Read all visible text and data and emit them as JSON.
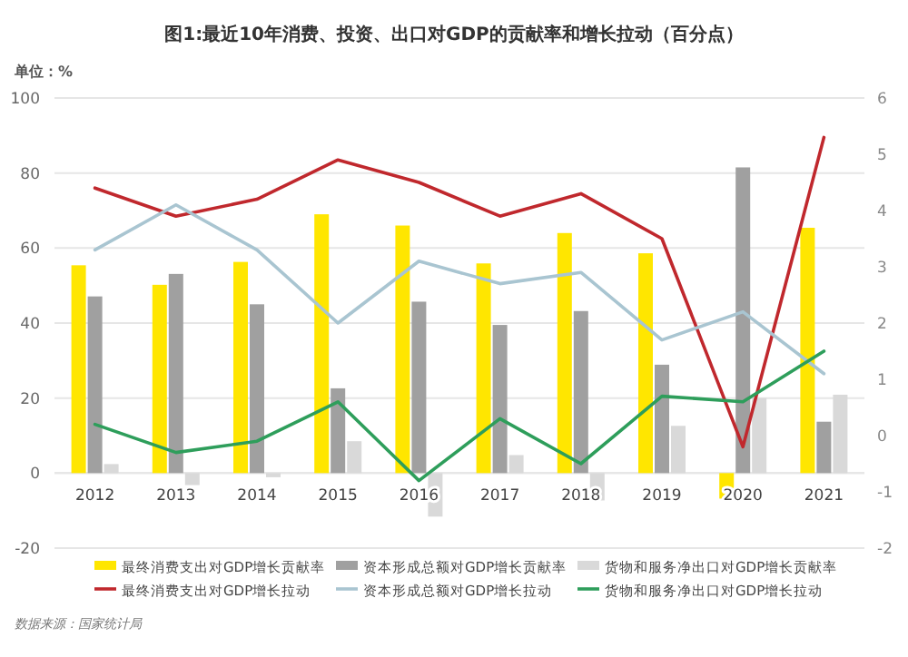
{
  "chart_data": {
    "type": "bar",
    "title": "图1:最近10年消费、投资、出口对GDP的贡献率和增长拉动（百分点）",
    "annotations": [
      "单位：%",
      "数据来源：国家统计局"
    ],
    "categories": [
      "2012",
      "2013",
      "2014",
      "2015",
      "2016",
      "2017",
      "2018",
      "2019",
      "2020",
      "2021"
    ],
    "series": [
      {
        "name": "最终消费支出对GDP增长贡献率",
        "color": "#ffe600",
        "values": [
          55.4,
          50.2,
          56.3,
          69.0,
          66.0,
          55.9,
          64.0,
          58.6,
          -6.8,
          65.4
        ]
      },
      {
        "name": "资本形成总额对GDP增长贡献率",
        "color": "#a0a0a0",
        "values": [
          47.1,
          53.1,
          45.0,
          22.6,
          45.7,
          39.5,
          43.2,
          28.9,
          81.5,
          13.7
        ]
      },
      {
        "name": "货物和服务净出口对GDP增长贡献率",
        "color": "#d9d9d9",
        "values": [
          2.4,
          -3.2,
          -1.1,
          8.5,
          -11.6,
          4.8,
          -7.3,
          12.6,
          20,
          20.9
        ]
      },
      {
        "type": "line",
        "axis": "y2",
        "name": "最终消费支出对GDP增长拉动",
        "color": "#c0282d",
        "values": [
          4.4,
          3.9,
          4.2,
          4.9,
          4.5,
          3.9,
          4.3,
          3.5,
          -0.2,
          5.3
        ]
      },
      {
        "type": "line",
        "axis": "y2",
        "name": "资本形成总额对GDP增长拉动",
        "color": "#a9c5d1",
        "values": [
          3.3,
          4.1,
          3.3,
          2.0,
          3.1,
          2.7,
          2.9,
          1.7,
          2.2,
          1.1
        ]
      },
      {
        "type": "line",
        "axis": "y2",
        "name": "货物和服务净出口对GDP增长拉动",
        "color": "#2e9e5b",
        "values": [
          0.2,
          -0.3,
          -0.1,
          0.6,
          -0.8,
          0.3,
          -0.5,
          0.7,
          0.6,
          1.5
        ]
      }
    ],
    "ylim": [
      -20,
      100
    ],
    "yticks": [
      -20,
      0,
      20,
      40,
      60,
      80,
      100
    ],
    "y2lim": [
      -2,
      6
    ],
    "y2ticks": [
      -2,
      -1,
      0,
      1,
      2,
      3,
      4,
      5,
      6
    ],
    "grid": "y",
    "legend": "bottom"
  }
}
